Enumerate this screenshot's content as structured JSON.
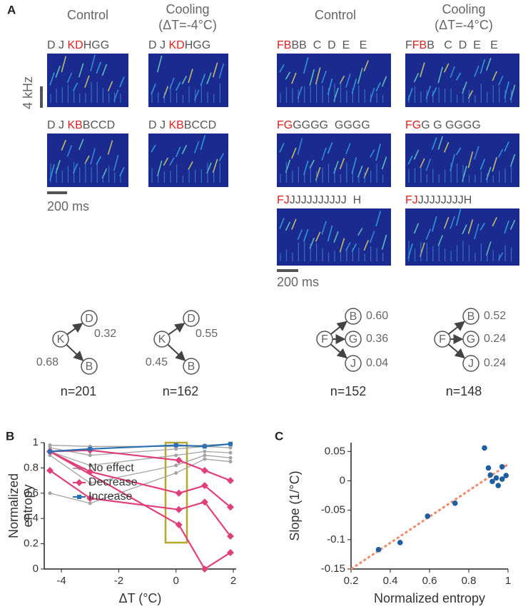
{
  "panel_labels": [
    "A",
    "B",
    "C"
  ],
  "panel_a": {
    "headers": [
      {
        "condition": "Control"
      },
      {
        "condition": "Cooling",
        "detail": "(ΔT=-4°C)"
      },
      {
        "condition": "Control"
      },
      {
        "condition": "Cooling",
        "detail": "(ΔT=-4°C)"
      }
    ],
    "spectrograms": [
      {
        "sequence": {
          "before": "D J ",
          "highlight": "KD",
          "after": "HGG"
        }
      },
      {
        "sequence": {
          "before": "D J ",
          "highlight": "KD",
          "after": "HGG"
        }
      },
      {
        "sequence": {
          "before": "D J ",
          "highlight": "KB",
          "after": "BCCD"
        }
      },
      {
        "sequence": {
          "before": "D J ",
          "highlight": "KB",
          "after": "BCCD"
        }
      },
      {
        "sequence": {
          "highlight": "FB",
          "after": "BB  C  D  E   E"
        }
      },
      {
        "sequence": {
          "before": "F",
          "highlight": "FB",
          "after": "B   C  D  E   E"
        }
      },
      {
        "sequence": {
          "highlight": "FG",
          "after": "GGGG  GGGG"
        }
      },
      {
        "sequence": {
          "highlight": "FG",
          "after": "G G GGGG"
        }
      },
      {
        "sequence": {
          "highlight": "FJ",
          "after": "JJJJJJJJJJ  H"
        }
      },
      {
        "sequence": {
          "highlight": "FJ",
          "after": "JJJJJJJJH"
        }
      }
    ],
    "scale_bars": {
      "frequency": "4 kHz",
      "time_left": "200 ms",
      "time_right": "200 ms"
    },
    "diagrams": [
      {
        "source": "K",
        "targets": [
          {
            "label": "D",
            "probability": "0.32"
          },
          {
            "label": "B",
            "probability": "0.68"
          }
        ],
        "n": "n=201"
      },
      {
        "source": "K",
        "targets": [
          {
            "label": "D",
            "probability": "0.55"
          },
          {
            "label": "B",
            "probability": "0.45"
          }
        ],
        "n": "n=162"
      },
      {
        "source": "F",
        "targets": [
          {
            "label": "B",
            "probability": "0.60"
          },
          {
            "label": "G",
            "probability": "0.36"
          },
          {
            "label": "J",
            "probability": "0.04"
          }
        ],
        "n": "n=152"
      },
      {
        "source": "F",
        "targets": [
          {
            "label": "B",
            "probability": "0.52"
          },
          {
            "label": "G",
            "probability": "0.24"
          },
          {
            "label": "J",
            "probability": "0.24"
          }
        ],
        "n": "n=148"
      }
    ]
  },
  "chart_data": [
    {
      "type": "line",
      "x_label": "ΔT (°C)",
      "y_label": [
        "Normalized",
        "entropy"
      ],
      "xlim": [
        -4.6,
        2.1
      ],
      "xticks": [
        -4,
        -2,
        0,
        2
      ],
      "ylim": [
        0,
        1
      ],
      "yticks": [
        0,
        0.2,
        0.4,
        0.6,
        0.8,
        1
      ],
      "series": [
        {
          "name": "No effect",
          "color": "#a3a3a3",
          "marker": "circle",
          "lines": [
            {
              "x": [
                -4.4,
                -3,
                0,
                1,
                1.9
              ],
              "values": [
                0.98,
                0.97,
                0.97,
                0.98,
                0.99
              ]
            },
            {
              "x": [
                -4.4,
                -3,
                0,
                1,
                1.9
              ],
              "values": [
                0.96,
                0.9,
                0.95,
                0.97,
                0.96
              ]
            },
            {
              "x": [
                -4.4,
                -3,
                0,
                1,
                1.9
              ],
              "values": [
                0.93,
                0.82,
                0.9,
                0.93,
                0.92
              ]
            },
            {
              "x": [
                -4.4,
                -3,
                0,
                1,
                1.9
              ],
              "values": [
                0.9,
                0.68,
                0.82,
                0.9,
                0.88
              ]
            },
            {
              "x": [
                -4.4,
                -3,
                0,
                1,
                1.9
              ],
              "values": [
                0.6,
                0.52,
                0.76,
                0.87,
                0.85
              ]
            }
          ]
        },
        {
          "name": "Decrease",
          "color": "#e0407a",
          "marker": "diamond",
          "lines": [
            {
              "x": [
                -4.4,
                -3,
                0.1,
                1,
                1.9
              ],
              "values": [
                0.93,
                0.94,
                0.86,
                0.78,
                0.7
              ]
            },
            {
              "x": [
                -4.4,
                -3,
                0.1,
                1,
                1.9
              ],
              "values": [
                0.93,
                0.77,
                0.6,
                0.66,
                0.49
              ]
            },
            {
              "x": [
                -4.4,
                -3,
                0.1,
                1,
                1.9
              ],
              "values": [
                0.78,
                0.56,
                0.47,
                0.53,
                0.26
              ]
            },
            {
              "x": [
                -4.4,
                0.1,
                1,
                1.9
              ],
              "values": [
                0.93,
                0.35,
                0,
                0.13
              ]
            }
          ]
        },
        {
          "name": "Increase",
          "color": "#2a6fb0",
          "marker": "square",
          "lines": [
            {
              "x": [
                -4.4,
                -3,
                0,
                1,
                1.9
              ],
              "values": [
                0.93,
                0.95,
                0.98,
                0.97,
                0.99
              ]
            }
          ]
        }
      ]
    },
    {
      "type": "scatter",
      "x_label": "Normalized entropy",
      "y_label": "Slope (1/°C)",
      "xlim": [
        0.2,
        1
      ],
      "xticks": [
        0.2,
        0.4,
        0.6,
        0.8,
        1
      ],
      "ylim": [
        -0.15,
        0.065
      ],
      "yticks": [
        -0.15,
        -0.1,
        -0.05,
        0,
        0.05
      ],
      "x": [
        0.34,
        0.45,
        0.59,
        0.73,
        0.88,
        0.9,
        0.91,
        0.92,
        0.94,
        0.95,
        0.97,
        0.97,
        0.99
      ],
      "values": [
        -0.117,
        -0.105,
        -0.06,
        -0.038,
        0.056,
        0.022,
        0.01,
        -0.001,
        0.005,
        -0.008,
        0.003,
        0.024,
        0.009
      ],
      "color": "#1f5fa0",
      "fit": {
        "x": [
          0.2,
          1
        ],
        "values": [
          -0.15,
          0.028
        ],
        "color": "#f08a6a"
      }
    }
  ]
}
